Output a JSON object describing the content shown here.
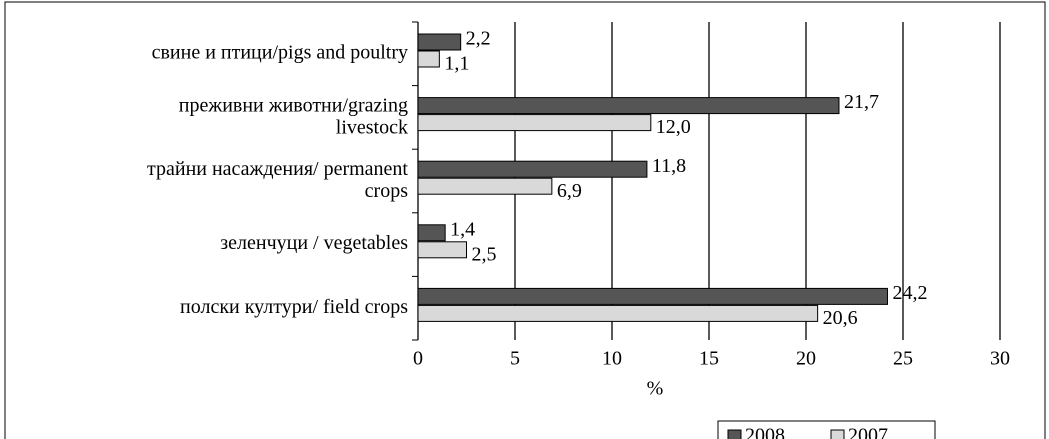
{
  "chart_data": {
    "type": "bar",
    "orientation": "horizontal",
    "categories": [
      "свине и птици/pigs and poultry",
      "преживни животни/grazing\nlivestock",
      "трайни насаждения/ permanent\ncrops",
      "зеленчуци / vegetables",
      "полски култури/ field crops"
    ],
    "series": [
      {
        "name": "2008",
        "color": "#555555",
        "values": [
          2.2,
          21.7,
          11.8,
          1.4,
          24.2
        ],
        "value_labels": [
          "2,2",
          "21,7",
          "11,8",
          "1,4",
          "24,2"
        ]
      },
      {
        "name": "2007",
        "color": "#d9d9d9",
        "values": [
          1.1,
          12.0,
          6.9,
          2.5,
          20.6
        ],
        "value_labels": [
          "1,1",
          "12,0",
          "6,9",
          "2,5",
          "20,6"
        ]
      }
    ],
    "xlabel": "%",
    "xlim": [
      0,
      30
    ],
    "xticks": [
      0,
      5,
      10,
      15,
      20,
      25,
      30
    ],
    "grid": true,
    "legend": "bottom"
  }
}
